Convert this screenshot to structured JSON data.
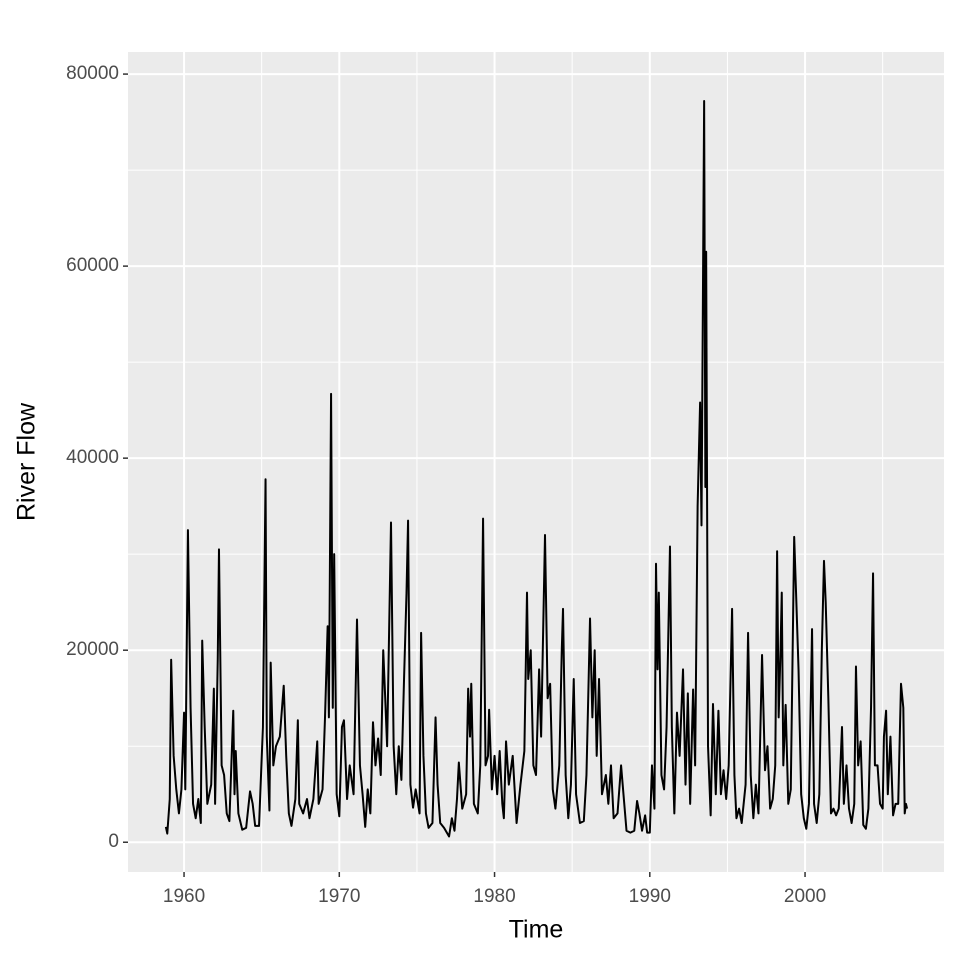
{
  "chart_data": {
    "type": "line",
    "x_label": "Time",
    "y_label": "River Flow",
    "color": "#000000",
    "xlim": [
      1956.39,
      2008.95
    ],
    "xticks": [
      1960,
      1970,
      1980,
      1990,
      2000
    ],
    "ylim": [
      -3100,
      82300
    ],
    "yticks": [
      0,
      20000,
      40000,
      60000,
      80000
    ],
    "grid": true,
    "x": [
      1958.83,
      1958.92,
      1959.08,
      1959.17,
      1959.33,
      1959.5,
      1959.67,
      1959.83,
      1960.0,
      1960.08,
      1960.25,
      1960.42,
      1960.58,
      1960.75,
      1960.92,
      1961.08,
      1961.17,
      1961.33,
      1961.5,
      1961.75,
      1961.92,
      1962.0,
      1962.17,
      1962.25,
      1962.42,
      1962.58,
      1962.75,
      1962.92,
      1963.17,
      1963.25,
      1963.33,
      1963.5,
      1963.75,
      1964.0,
      1964.25,
      1964.42,
      1964.58,
      1964.83,
      1965.08,
      1965.25,
      1965.33,
      1965.5,
      1965.58,
      1965.75,
      1965.92,
      1966.17,
      1966.42,
      1966.58,
      1966.75,
      1966.92,
      1967.17,
      1967.33,
      1967.42,
      1967.67,
      1967.92,
      1968.08,
      1968.33,
      1968.58,
      1968.67,
      1968.92,
      1969.08,
      1969.25,
      1969.33,
      1969.47,
      1969.58,
      1969.67,
      1969.83,
      1970.0,
      1970.17,
      1970.3,
      1970.5,
      1970.67,
      1970.92,
      1971.14,
      1971.33,
      1971.5,
      1971.67,
      1971.83,
      1972.0,
      1972.17,
      1972.33,
      1972.5,
      1972.67,
      1972.83,
      1972.95,
      1973.08,
      1973.33,
      1973.5,
      1973.67,
      1973.83,
      1974.0,
      1974.17,
      1974.33,
      1974.43,
      1974.58,
      1974.75,
      1974.92,
      1975.17,
      1975.27,
      1975.42,
      1975.58,
      1975.75,
      1976.0,
      1976.2,
      1976.33,
      1976.5,
      1976.75,
      1977.07,
      1977.25,
      1977.42,
      1977.58,
      1977.7,
      1977.92,
      1978.17,
      1978.3,
      1978.42,
      1978.5,
      1978.67,
      1978.92,
      1979.08,
      1979.26,
      1979.42,
      1979.58,
      1979.65,
      1979.83,
      1980.0,
      1980.17,
      1980.33,
      1980.5,
      1980.6,
      1980.74,
      1980.92,
      1981.17,
      1981.42,
      1981.67,
      1981.92,
      1982.09,
      1982.17,
      1982.33,
      1982.5,
      1982.67,
      1982.87,
      1983.0,
      1983.25,
      1983.42,
      1983.58,
      1983.75,
      1983.92,
      1984.17,
      1984.33,
      1984.41,
      1984.58,
      1984.75,
      1984.92,
      1985.1,
      1985.25,
      1985.5,
      1985.75,
      1985.92,
      1986.15,
      1986.3,
      1986.45,
      1986.58,
      1986.73,
      1986.92,
      1987.17,
      1987.33,
      1987.5,
      1987.67,
      1987.92,
      1988.15,
      1988.33,
      1988.5,
      1988.75,
      1989.0,
      1989.18,
      1989.33,
      1989.5,
      1989.7,
      1989.83,
      1990.0,
      1990.14,
      1990.3,
      1990.4,
      1990.5,
      1990.58,
      1990.75,
      1990.92,
      1991.08,
      1991.3,
      1991.42,
      1991.58,
      1991.75,
      1991.92,
      1992.14,
      1992.3,
      1992.45,
      1992.6,
      1992.79,
      1992.92,
      1993.08,
      1993.24,
      1993.33,
      1993.5,
      1993.58,
      1993.63,
      1993.75,
      1993.92,
      1994.07,
      1994.25,
      1994.42,
      1994.58,
      1994.75,
      1994.92,
      1995.08,
      1995.3,
      1995.45,
      1995.58,
      1995.75,
      1995.92,
      1996.17,
      1996.33,
      1996.5,
      1996.67,
      1996.83,
      1997.0,
      1997.23,
      1997.42,
      1997.58,
      1997.75,
      1997.92,
      1998.08,
      1998.2,
      1998.3,
      1998.42,
      1998.5,
      1998.6,
      1998.75,
      1998.92,
      1999.08,
      1999.3,
      1999.42,
      1999.58,
      1999.75,
      1999.92,
      2000.08,
      2000.25,
      2000.45,
      2000.58,
      2000.75,
      2000.92,
      2001.08,
      2001.22,
      2001.33,
      2001.5,
      2001.67,
      2001.83,
      2002.0,
      2002.17,
      2002.38,
      2002.5,
      2002.67,
      2002.83,
      2003.0,
      2003.17,
      2003.28,
      2003.42,
      2003.58,
      2003.75,
      2003.92,
      2004.08,
      2004.25,
      2004.38,
      2004.5,
      2004.67,
      2004.83,
      2005.0,
      2005.08,
      2005.22,
      2005.33,
      2005.5,
      2005.67,
      2005.83,
      2006.0,
      2006.18,
      2006.33,
      2006.42,
      2006.5,
      2006.57
    ],
    "values": [
      1600,
      900,
      4500,
      19000,
      9000,
      5500,
      3000,
      5500,
      13500,
      5500,
      32500,
      14000,
      4000,
      2500,
      4500,
      2000,
      21000,
      12000,
      4000,
      6000,
      16000,
      4000,
      19000,
      30500,
      8000,
      7000,
      3000,
      2200,
      13700,
      5000,
      9500,
      3000,
      1300,
      1500,
      5300,
      4000,
      1700,
      1700,
      12000,
      37800,
      11000,
      3300,
      18700,
      8000,
      10000,
      11000,
      16300,
      9000,
      3000,
      1700,
      4500,
      12700,
      4000,
      3000,
      4500,
      2500,
      4500,
      10500,
      4000,
      5500,
      13000,
      22500,
      13000,
      46700,
      14000,
      30000,
      5000,
      2700,
      12000,
      12700,
      4500,
      8000,
      5000,
      23200,
      8000,
      5000,
      1600,
      5500,
      3000,
      12500,
      8000,
      10800,
      7000,
      20000,
      15300,
      10000,
      33300,
      10000,
      5000,
      10000,
      6500,
      17000,
      26000,
      33500,
      6000,
      3600,
      5500,
      3000,
      21800,
      9000,
      3000,
      1500,
      2000,
      13000,
      6000,
      2000,
      1500,
      600,
      2500,
      1200,
      4500,
      8300,
      3500,
      5000,
      16000,
      11000,
      16500,
      4000,
      3000,
      8000,
      33700,
      8000,
      9000,
      13800,
      5500,
      9000,
      5000,
      9500,
      4000,
      2500,
      10500,
      6000,
      9000,
      2000,
      6000,
      9500,
      26000,
      17000,
      20000,
      8000,
      7000,
      18000,
      11000,
      32000,
      15000,
      16500,
      5500,
      3500,
      8000,
      20000,
      24300,
      7000,
      2500,
      6000,
      17000,
      5000,
      2000,
      2200,
      7000,
      23300,
      13000,
      20000,
      9000,
      17000,
      5000,
      7000,
      4000,
      8000,
      2500,
      3000,
      8000,
      4500,
      1200,
      1000,
      1200,
      4300,
      3000,
      1200,
      2800,
      1000,
      1000,
      8000,
      3500,
      29000,
      18000,
      26000,
      7000,
      5500,
      12000,
      30800,
      12000,
      3000,
      13500,
      9000,
      18000,
      6000,
      15500,
      4000,
      15900,
      8000,
      35000,
      45800,
      33000,
      77200,
      37000,
      61500,
      10000,
      2800,
      14400,
      5000,
      13700,
      5000,
      7500,
      4500,
      8000,
      24300,
      7000,
      2500,
      3500,
      2000,
      6000,
      21800,
      7000,
      2500,
      6000,
      3000,
      19500,
      7500,
      10000,
      3500,
      4500,
      8000,
      30300,
      13000,
      20000,
      26000,
      8000,
      14300,
      4000,
      5500,
      31800,
      26000,
      18000,
      5000,
      2500,
      1400,
      4000,
      22200,
      4000,
      2000,
      5000,
      20000,
      29300,
      25000,
      15000,
      3000,
      3500,
      2800,
      3500,
      12000,
      4000,
      8000,
      3500,
      2000,
      4000,
      18300,
      8000,
      10500,
      1800,
      1400,
      3500,
      14000,
      28000,
      8000,
      8000,
      4000,
      3500,
      11000,
      13700,
      5000,
      11000,
      2800,
      4000,
      4000,
      16500,
      14000,
      3000,
      4000,
      3500
    ]
  }
}
